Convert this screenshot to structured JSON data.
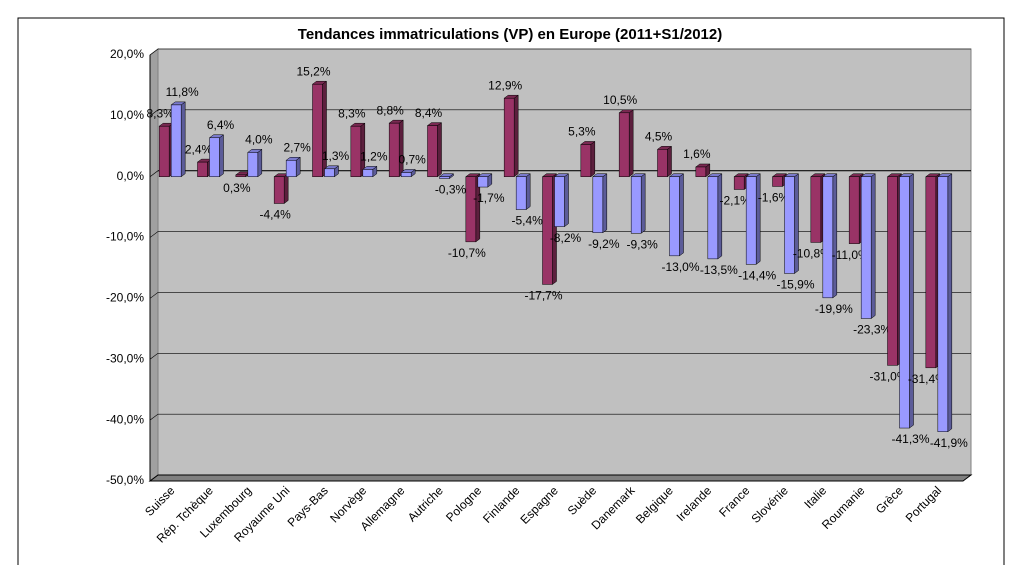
{
  "chart_data": {
    "type": "bar",
    "title": "Tendances immatriculations (VP) en Europe (2011+S1/2012)",
    "categories": [
      "Suisse",
      "Rép. Tchèque",
      "Luxembourg",
      "Royaume Uni",
      "Pays-Bas",
      "Norvège",
      "Allemagne",
      "Autriche",
      "Pologne",
      "Finlande",
      "Espagne",
      "Suède",
      "Danemark",
      "Belgique",
      "Irelande",
      "France",
      "Slovénie",
      "Italie",
      "Roumanie",
      "Grèce",
      "Portugal"
    ],
    "series": [
      {
        "color": "#993366",
        "values": [
          8.3,
          2.4,
          0.3,
          -4.4,
          15.2,
          8.3,
          8.8,
          8.4,
          -10.7,
          12.9,
          -17.7,
          5.3,
          10.5,
          4.5,
          1.6,
          -2.1,
          -1.6,
          -10.8,
          -11.0,
          -31.0,
          -31.4
        ],
        "value_labels": [
          "8,3%",
          "2,4%",
          "0,3%",
          "-4,4%",
          "15,2%",
          "8,3%",
          "8,8%",
          "8,4%",
          "-10,7%",
          "12,9%",
          "-17,7%",
          "5,3%",
          "10,5%",
          "4,5%",
          "1,6%",
          "-2,1%",
          "-1,6%",
          "-10,8%",
          "-11,0%",
          "-31,0%",
          "-31,4%"
        ]
      },
      {
        "color": "#9999ff",
        "values": [
          11.8,
          6.4,
          4.0,
          2.7,
          1.3,
          1.2,
          0.7,
          -0.3,
          -1.7,
          -5.4,
          -8.2,
          -9.2,
          -9.3,
          -13.0,
          -13.5,
          -14.4,
          -15.9,
          -19.9,
          -23.3,
          -41.3,
          -41.9
        ],
        "value_labels": [
          "11,8%",
          "6,4%",
          "4,0%",
          "2,7%",
          "1,3%",
          "1,2%",
          "0,7%",
          "-0,3%",
          "-1,7%",
          "-5,4%",
          "-8,2%",
          "-9,2%",
          "-9,3%",
          "-13,0%",
          "-13,5%",
          "-14,4%",
          "-15,9%",
          "-19,9%",
          "-23,3%",
          "-41,3%",
          "-41,9%"
        ]
      }
    ],
    "ylim": [
      -50,
      20
    ],
    "yticks": [
      {
        "value": -50,
        "label": "-50,0%"
      },
      {
        "value": -40,
        "label": "-40,0%"
      },
      {
        "value": -30,
        "label": "-30,0%"
      },
      {
        "value": -20,
        "label": "-20,0%"
      },
      {
        "value": -10,
        "label": "-10,0%"
      },
      {
        "value": 0,
        "label": "0,0%"
      },
      {
        "value": 10,
        "label": "10,0%"
      },
      {
        "value": 20,
        "label": "20,0%"
      }
    ],
    "grid": true
  }
}
